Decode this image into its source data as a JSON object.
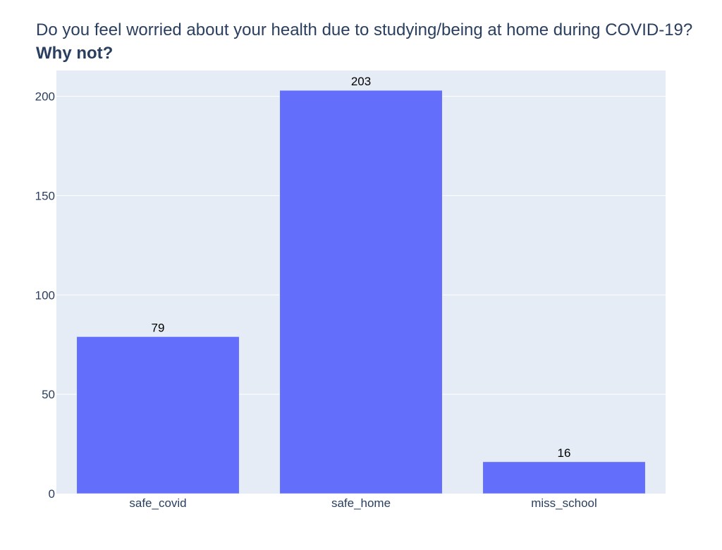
{
  "chart_data": {
    "type": "bar",
    "title": "Do you feel worried about your health due to studying/being at home during COVID-19?",
    "subtitle": "Why not?",
    "categories": [
      "safe_covid",
      "safe_home",
      "miss_school"
    ],
    "values": [
      79,
      203,
      16
    ],
    "data_labels": [
      "79",
      "203",
      "16"
    ],
    "ylim": [
      0,
      213
    ],
    "yticks": [
      0,
      50,
      100,
      150,
      200
    ],
    "xlabel": "",
    "ylabel": "",
    "grid": true,
    "legend": "none",
    "bar_color": "#636efa",
    "plot_bg_color": "#e5ecf6",
    "gridline_color": "#ffffff",
    "text_color": "#2a3f5f"
  }
}
